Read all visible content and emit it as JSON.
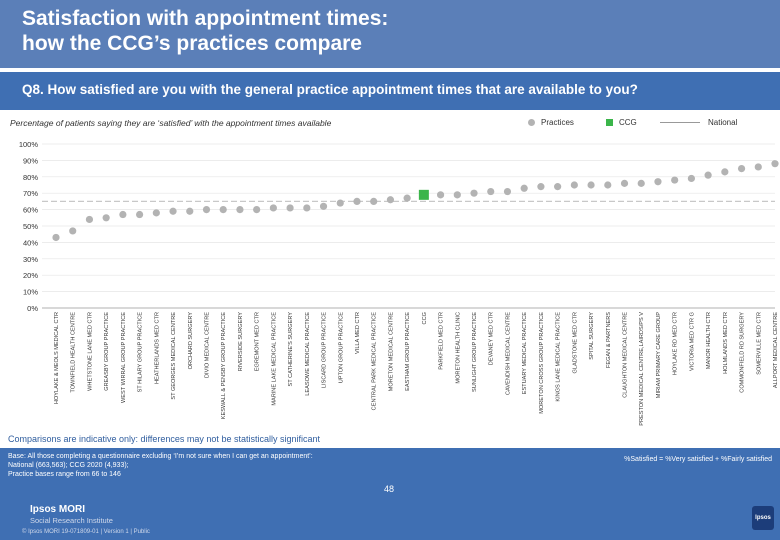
{
  "title_line1": "Satisfaction with appointment times:",
  "title_line2": "how the CCG’s practices compare",
  "question": "Q8. How satisfied are you with the general practice appointment times that are available to you?",
  "subtitle": "Percentage of patients saying they are ‘satisfied’ with the appointment times available",
  "legend": {
    "practices": "Practices",
    "ccg": "CCG",
    "national": "National"
  },
  "colors": {
    "practice": "#b3b3b3",
    "ccg": "#3bb54a",
    "national": "#c8c8c8",
    "header": "#5b7fb8",
    "band": "#3f6fb3"
  },
  "chart_data": {
    "type": "scatter",
    "ylim": [
      0,
      100
    ],
    "yticks": [
      "0%",
      "10%",
      "20%",
      "30%",
      "40%",
      "50%",
      "60%",
      "70%",
      "80%",
      "90%",
      "100%"
    ],
    "national_value": 65,
    "points": [
      {
        "name": "HOYLAKE & MEOLS MEDICAL CTR",
        "value": 43,
        "type": "practice"
      },
      {
        "name": "TOWNFIELD HEALTH CENTRE",
        "value": 47,
        "type": "practice"
      },
      {
        "name": "WHETSTONE LANE MED CTR",
        "value": 54,
        "type": "practice"
      },
      {
        "name": "GREASBY GROUP PRACTICE",
        "value": 55,
        "type": "practice"
      },
      {
        "name": "WEST WIRRAL GROUP PRACTICE",
        "value": 57,
        "type": "practice"
      },
      {
        "name": "ST HILARY GROUP PRACTICE",
        "value": 57,
        "type": "practice"
      },
      {
        "name": "HEATHERLANDS MED CTR",
        "value": 58,
        "type": "practice"
      },
      {
        "name": "ST GEORGES MEDICAL CENTRE",
        "value": 59,
        "type": "practice"
      },
      {
        "name": "ORCHARD SURGERY",
        "value": 59,
        "type": "practice"
      },
      {
        "name": "DIVIO MEDICAL CENTRE",
        "value": 60,
        "type": "practice"
      },
      {
        "name": "KESWALL & PENSBY GROUP PRACTICE",
        "value": 60,
        "type": "practice"
      },
      {
        "name": "RIVERSIDE SURGERY",
        "value": 60,
        "type": "practice"
      },
      {
        "name": "EGREMONT MED CTR",
        "value": 60,
        "type": "practice"
      },
      {
        "name": "MARINE LAKE MEDICAL PRACTICE",
        "value": 61,
        "type": "practice"
      },
      {
        "name": "ST CATHERINE'S SURGERY",
        "value": 61,
        "type": "practice"
      },
      {
        "name": "LEASOWE MEDICAL PRACTICE",
        "value": 61,
        "type": "practice"
      },
      {
        "name": "LISCARD GROUP PRACTICE",
        "value": 62,
        "type": "practice"
      },
      {
        "name": "UPTON GROUP PRACTICE",
        "value": 64,
        "type": "practice"
      },
      {
        "name": "VILLA MED CTR",
        "value": 65,
        "type": "practice"
      },
      {
        "name": "CENTRAL PARK MEDICAL PRACTICE",
        "value": 65,
        "type": "practice"
      },
      {
        "name": "MORETON MEDICAL CENTRE",
        "value": 66,
        "type": "practice"
      },
      {
        "name": "EASTHAM GROUP PRACTICE",
        "value": 67,
        "type": "practice"
      },
      {
        "name": "CCG",
        "value": 69,
        "type": "ccg"
      },
      {
        "name": "PARKFIELD MED CTR",
        "value": 69,
        "type": "practice"
      },
      {
        "name": "MORETON HEALTH CLINIC",
        "value": 69,
        "type": "practice"
      },
      {
        "name": "SUNLIGHT GROUP PRACTICE",
        "value": 70,
        "type": "practice"
      },
      {
        "name": "DEVANEY MED CTR",
        "value": 71,
        "type": "practice"
      },
      {
        "name": "CAVENDISH MEDICAL CENTRE",
        "value": 71,
        "type": "practice"
      },
      {
        "name": "ESTUARY MEDICAL PRACTICE",
        "value": 73,
        "type": "practice"
      },
      {
        "name": "MORETON CROSS GROUP PRACTICE",
        "value": 74,
        "type": "practice"
      },
      {
        "name": "KINGS LANE MEDICAL PRACTICE",
        "value": 74,
        "type": "practice"
      },
      {
        "name": "GLADSTONE MED CTR",
        "value": 75,
        "type": "practice"
      },
      {
        "name": "SPITAL SURGERY",
        "value": 75,
        "type": "practice"
      },
      {
        "name": "FEGAN & PARTNERS",
        "value": 75,
        "type": "practice"
      },
      {
        "name": "CLAUGHTON MEDICAL CENTRE",
        "value": 76,
        "type": "practice"
      },
      {
        "name": "PRESTON MEDICAL CENTRE,LAIRDS/PS V",
        "value": 76,
        "type": "practice"
      },
      {
        "name": "MIRIAM PRIMARY CARE GROUP",
        "value": 77,
        "type": "practice"
      },
      {
        "name": "HOYLAKE RD MED CTR",
        "value": 78,
        "type": "practice"
      },
      {
        "name": "VICTORIA MED CTR G",
        "value": 79,
        "type": "practice"
      },
      {
        "name": "MANOR HEALTH CTR",
        "value": 81,
        "type": "practice"
      },
      {
        "name": "HOLMLANDS MED CTR",
        "value": 83,
        "type": "practice"
      },
      {
        "name": "COMMONFIELD RD SURGERY",
        "value": 85,
        "type": "practice"
      },
      {
        "name": "SOMERVILLE MED CTR",
        "value": 86,
        "type": "practice"
      },
      {
        "name": "ALLPORT MEDICAL CENTRE",
        "value": 88,
        "type": "practice"
      }
    ]
  },
  "note": "Comparisons are indicative only: differences may not be statistically significant",
  "base_line1": "Base: All those completing a questionnaire excluding ‘I’m not sure when I can get an appointment’: National (663,563); CCG 2020 (4,933);",
  "base_line2": "Practice bases range from 66 to 146",
  "definition": "%Satisfied = %Very satisfied + %Fairly satisfied",
  "page_number": "48",
  "brand_line1": "Ipsos MORI",
  "brand_line2": "Social Research Institute",
  "copyright": "© Ipsos MORI     19-071809-01 | Version 1 | Public",
  "ipsos_badge": "Ipsos"
}
